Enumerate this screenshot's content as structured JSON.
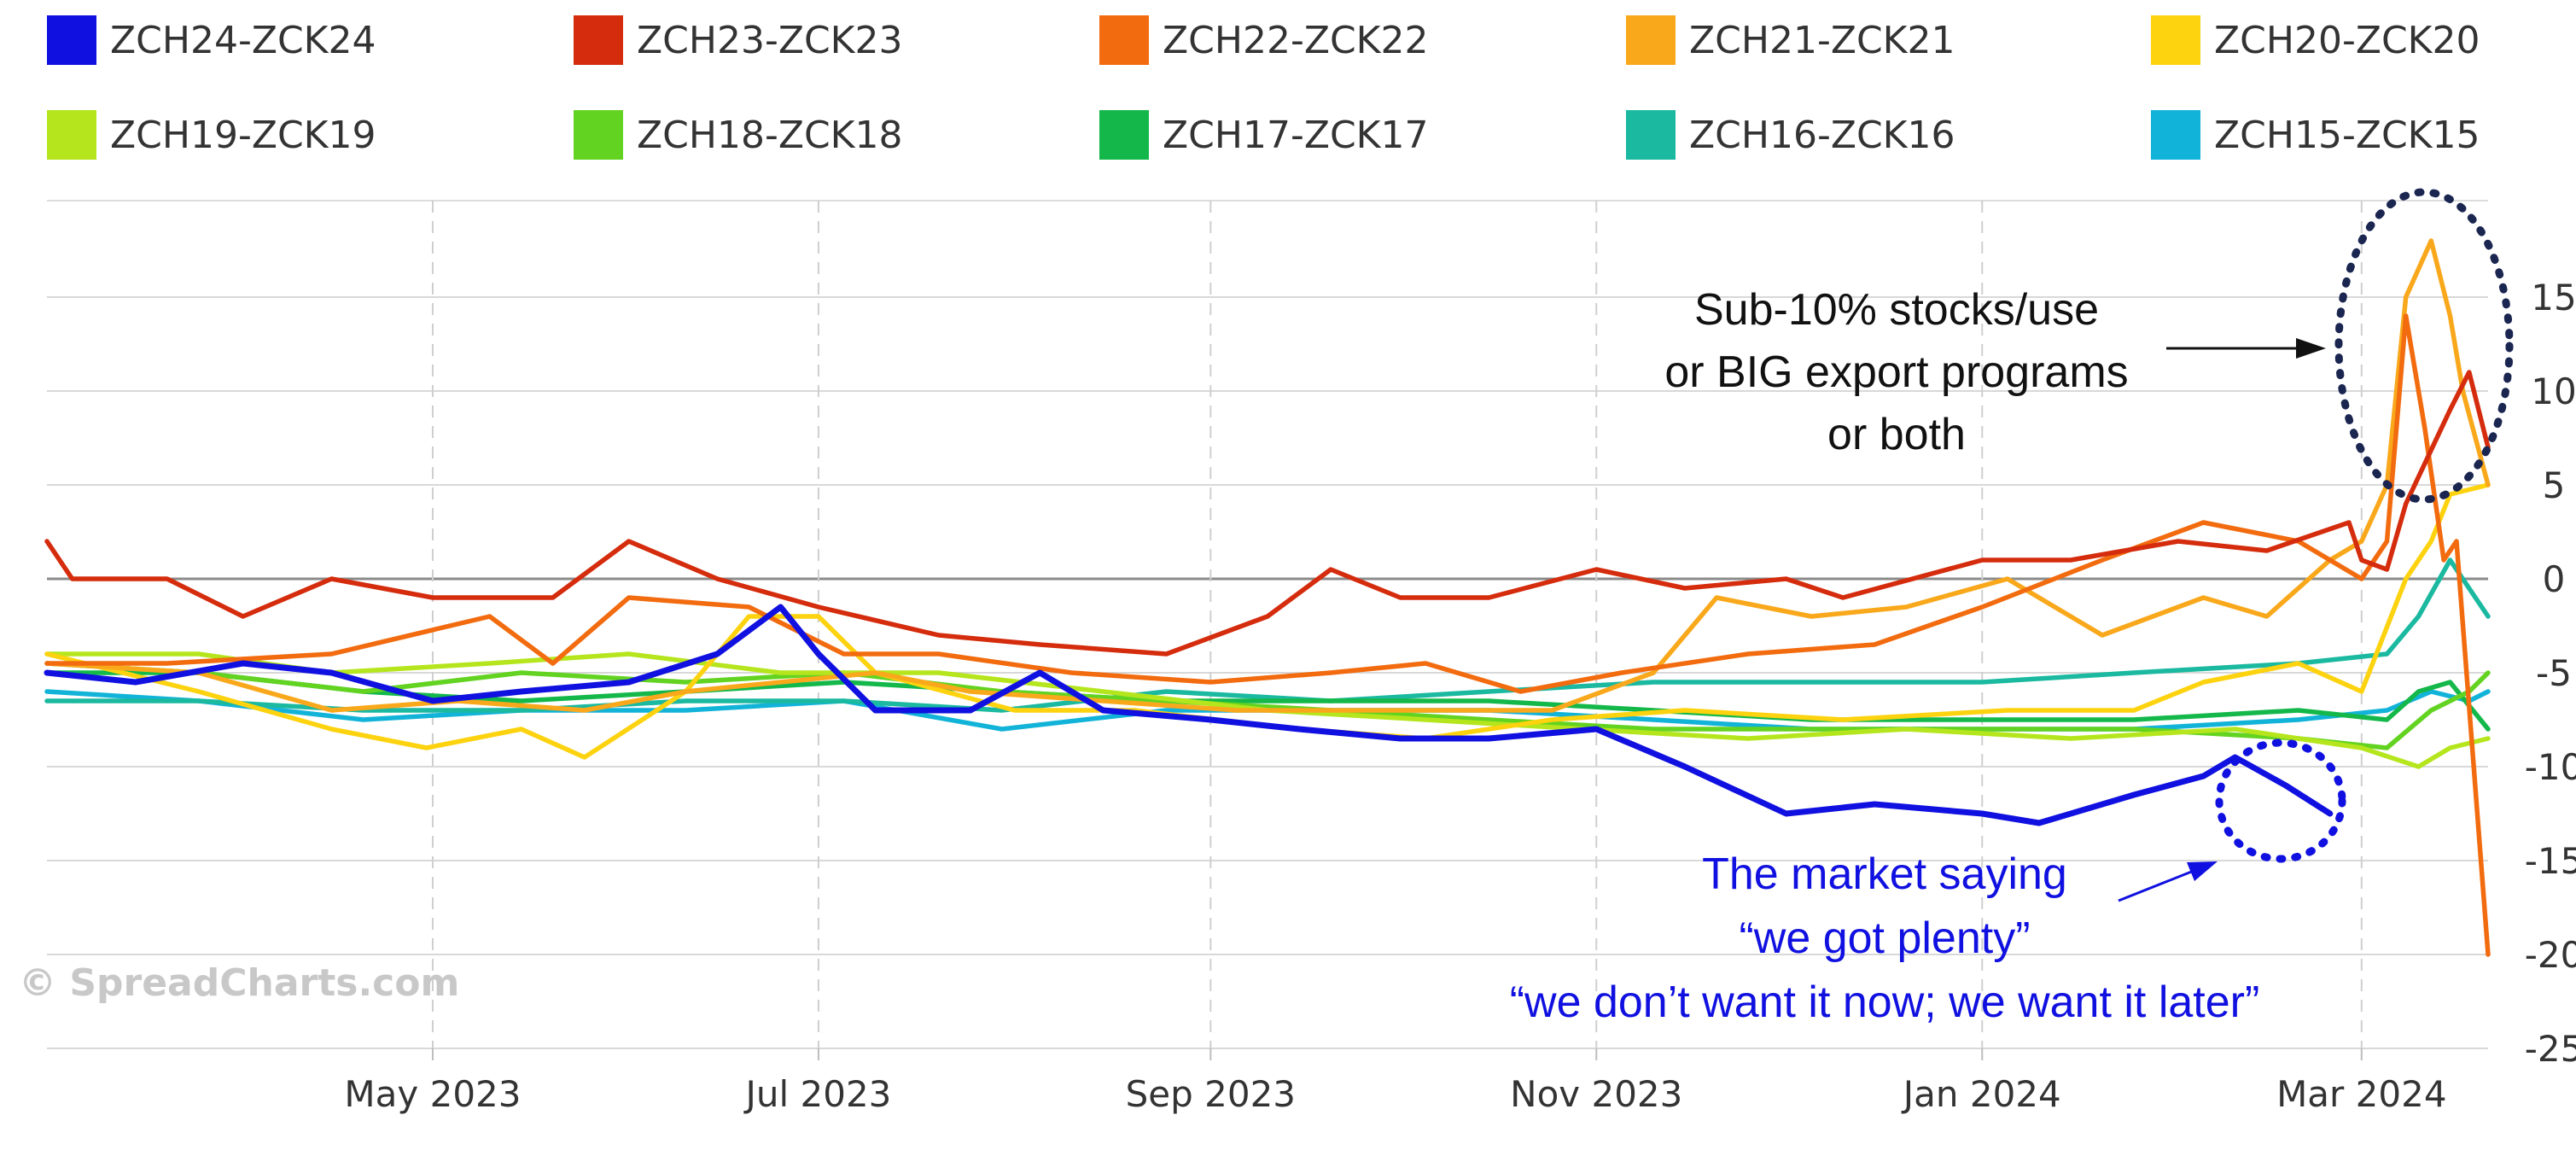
{
  "watermark": "© SpreadCharts.com",
  "chart_data": {
    "type": "line",
    "x_axis": {
      "ticks": [
        "May 2023",
        "Jul 2023",
        "Sep 2023",
        "Nov 2023",
        "Jan 2024",
        "Mar 2024"
      ]
    },
    "y_axis": {
      "range": [
        -25,
        20
      ],
      "ticks": [
        15,
        10,
        5,
        0,
        -5,
        -10,
        -15,
        -20,
        -25
      ],
      "position": "right"
    },
    "grid": {
      "horizontal": true,
      "vertical": "dashed"
    },
    "legend": {
      "position": "top"
    },
    "series": [
      {
        "name": "ZCH24-ZCK24",
        "color": "#1010e0",
        "points": [
          [
            "2023-03-01",
            -5
          ],
          [
            "2023-03-15",
            -5.5
          ],
          [
            "2023-04-01",
            -4.5
          ],
          [
            "2023-04-15",
            -5
          ],
          [
            "2023-05-01",
            -6.5
          ],
          [
            "2023-05-15",
            -6
          ],
          [
            "2023-06-01",
            -5.5
          ],
          [
            "2023-06-15",
            -4
          ],
          [
            "2023-06-25",
            -1.5
          ],
          [
            "2023-07-01",
            -4
          ],
          [
            "2023-07-10",
            -7
          ],
          [
            "2023-07-25",
            -7
          ],
          [
            "2023-08-05",
            -5
          ],
          [
            "2023-08-15",
            -7
          ],
          [
            "2023-09-01",
            -7.5
          ],
          [
            "2023-09-15",
            -8
          ],
          [
            "2023-10-01",
            -8.5
          ],
          [
            "2023-10-15",
            -8.5
          ],
          [
            "2023-11-01",
            -8
          ],
          [
            "2023-11-15",
            -10
          ],
          [
            "2023-12-01",
            -12.5
          ],
          [
            "2023-12-15",
            -12
          ],
          [
            "2024-01-01",
            -12.5
          ],
          [
            "2024-01-10",
            -13
          ],
          [
            "2024-01-25",
            -11.5
          ],
          [
            "2024-02-05",
            -10.5
          ],
          [
            "2024-02-10",
            -9.5
          ],
          [
            "2024-02-18",
            -11
          ],
          [
            "2024-02-25",
            -12.5
          ]
        ]
      },
      {
        "name": "ZCH23-ZCK23",
        "color": "#d42c0c",
        "points": [
          [
            "2023-03-01",
            2
          ],
          [
            "2023-03-05",
            0
          ],
          [
            "2023-03-20",
            0
          ],
          [
            "2023-04-01",
            -2
          ],
          [
            "2023-04-15",
            0
          ],
          [
            "2023-05-01",
            -1
          ],
          [
            "2023-05-20",
            -1
          ],
          [
            "2023-06-01",
            2
          ],
          [
            "2023-06-15",
            0
          ],
          [
            "2023-07-01",
            -1.5
          ],
          [
            "2023-07-20",
            -3
          ],
          [
            "2023-08-05",
            -3.5
          ],
          [
            "2023-08-25",
            -4
          ],
          [
            "2023-09-10",
            -2
          ],
          [
            "2023-09-20",
            0.5
          ],
          [
            "2023-10-01",
            -1
          ],
          [
            "2023-10-15",
            -1
          ],
          [
            "2023-11-01",
            0.5
          ],
          [
            "2023-11-15",
            -0.5
          ],
          [
            "2023-12-01",
            0
          ],
          [
            "2023-12-10",
            -1
          ],
          [
            "2024-01-01",
            1
          ],
          [
            "2024-01-15",
            1
          ],
          [
            "2024-02-01",
            2
          ],
          [
            "2024-02-15",
            1.5
          ],
          [
            "2024-02-28",
            3
          ],
          [
            "2024-03-01",
            1
          ],
          [
            "2024-03-05",
            0.5
          ],
          [
            "2024-03-08",
            4
          ],
          [
            "2024-03-15",
            9
          ],
          [
            "2024-03-18",
            11
          ],
          [
            "2024-03-21",
            7
          ]
        ]
      },
      {
        "name": "ZCH22-ZCK22",
        "color": "#f26b0f",
        "points": [
          [
            "2023-03-01",
            -4.5
          ],
          [
            "2023-03-20",
            -4.5
          ],
          [
            "2023-04-15",
            -4
          ],
          [
            "2023-05-10",
            -2
          ],
          [
            "2023-05-20",
            -4.5
          ],
          [
            "2023-06-01",
            -1
          ],
          [
            "2023-06-20",
            -1.5
          ],
          [
            "2023-07-05",
            -4
          ],
          [
            "2023-07-20",
            -4
          ],
          [
            "2023-08-10",
            -5
          ],
          [
            "2023-09-01",
            -5.5
          ],
          [
            "2023-09-20",
            -5
          ],
          [
            "2023-10-05",
            -4.5
          ],
          [
            "2023-10-20",
            -6
          ],
          [
            "2023-11-05",
            -5
          ],
          [
            "2023-11-25",
            -4
          ],
          [
            "2023-12-15",
            -3.5
          ],
          [
            "2024-01-01",
            -1.5
          ],
          [
            "2024-01-20",
            1
          ],
          [
            "2024-02-05",
            3
          ],
          [
            "2024-02-20",
            2
          ],
          [
            "2024-03-01",
            0
          ],
          [
            "2024-03-05",
            2
          ],
          [
            "2024-03-08",
            14
          ],
          [
            "2024-03-11",
            8
          ],
          [
            "2024-03-14",
            1
          ],
          [
            "2024-03-16",
            2
          ],
          [
            "2024-03-21",
            -20
          ]
        ]
      },
      {
        "name": "ZCH21-ZCK21",
        "color": "#f9a81b",
        "points": [
          [
            "2023-03-01",
            -4.5
          ],
          [
            "2023-03-25",
            -5
          ],
          [
            "2023-04-15",
            -7
          ],
          [
            "2023-05-05",
            -6.5
          ],
          [
            "2023-05-25",
            -7
          ],
          [
            "2023-06-10",
            -6
          ],
          [
            "2023-06-25",
            -5.5
          ],
          [
            "2023-07-10",
            -5
          ],
          [
            "2023-07-25",
            -6
          ],
          [
            "2023-08-15",
            -6.5
          ],
          [
            "2023-09-05",
            -7
          ],
          [
            "2023-09-25",
            -7
          ],
          [
            "2023-10-10",
            -7
          ],
          [
            "2023-10-25",
            -7
          ],
          [
            "2023-11-10",
            -5
          ],
          [
            "2023-11-20",
            -1
          ],
          [
            "2023-12-05",
            -2
          ],
          [
            "2023-12-20",
            -1.5
          ],
          [
            "2024-01-05",
            0
          ],
          [
            "2024-01-20",
            -3
          ],
          [
            "2024-02-05",
            -1
          ],
          [
            "2024-02-15",
            -2
          ],
          [
            "2024-02-25",
            1
          ],
          [
            "2024-03-01",
            2
          ],
          [
            "2024-03-05",
            5
          ],
          [
            "2024-03-08",
            15
          ],
          [
            "2024-03-12",
            18
          ],
          [
            "2024-03-15",
            14
          ],
          [
            "2024-03-17",
            10
          ],
          [
            "2024-03-21",
            5
          ]
        ]
      },
      {
        "name": "ZCH20-ZCK20",
        "color": "#fdd20e",
        "points": [
          [
            "2023-03-01",
            -4
          ],
          [
            "2023-03-25",
            -6
          ],
          [
            "2023-04-15",
            -8
          ],
          [
            "2023-04-30",
            -9
          ],
          [
            "2023-05-15",
            -8
          ],
          [
            "2023-05-25",
            -9.5
          ],
          [
            "2023-06-10",
            -6
          ],
          [
            "2023-06-20",
            -2
          ],
          [
            "2023-07-01",
            -2
          ],
          [
            "2023-07-10",
            -5
          ],
          [
            "2023-08-01",
            -7
          ],
          [
            "2023-08-20",
            -7
          ],
          [
            "2023-09-15",
            -8
          ],
          [
            "2023-10-05",
            -8.5
          ],
          [
            "2023-10-25",
            -7.5
          ],
          [
            "2023-11-15",
            -7
          ],
          [
            "2023-12-10",
            -7.5
          ],
          [
            "2024-01-05",
            -7
          ],
          [
            "2024-01-25",
            -7
          ],
          [
            "2024-02-05",
            -5.5
          ],
          [
            "2024-02-20",
            -4.5
          ],
          [
            "2024-03-01",
            -6
          ],
          [
            "2024-03-08",
            0
          ],
          [
            "2024-03-12",
            2
          ],
          [
            "2024-03-15",
            4.5
          ],
          [
            "2024-03-21",
            5
          ]
        ]
      },
      {
        "name": "ZCH19-ZCK19",
        "color": "#b5e61d",
        "points": [
          [
            "2023-03-01",
            -4
          ],
          [
            "2023-03-25",
            -4
          ],
          [
            "2023-04-15",
            -5
          ],
          [
            "2023-05-10",
            -4.5
          ],
          [
            "2023-06-01",
            -4
          ],
          [
            "2023-06-25",
            -5
          ],
          [
            "2023-07-20",
            -5
          ],
          [
            "2023-08-15",
            -6
          ],
          [
            "2023-09-10",
            -7
          ],
          [
            "2023-10-05",
            -7.5
          ],
          [
            "2023-10-30",
            -8
          ],
          [
            "2023-11-25",
            -8.5
          ],
          [
            "2023-12-20",
            -8
          ],
          [
            "2024-01-15",
            -8.5
          ],
          [
            "2024-02-10",
            -8
          ],
          [
            "2024-03-01",
            -9
          ],
          [
            "2024-03-10",
            -10
          ],
          [
            "2024-03-15",
            -9
          ],
          [
            "2024-03-21",
            -8.5
          ]
        ]
      },
      {
        "name": "ZCH18-ZCK18",
        "color": "#63d321",
        "points": [
          [
            "2023-03-01",
            -4.5
          ],
          [
            "2023-03-25",
            -5
          ],
          [
            "2023-04-20",
            -6
          ],
          [
            "2023-05-15",
            -5
          ],
          [
            "2023-06-10",
            -5.5
          ],
          [
            "2023-07-05",
            -5
          ],
          [
            "2023-07-30",
            -6
          ],
          [
            "2023-08-25",
            -6.5
          ],
          [
            "2023-09-20",
            -7
          ],
          [
            "2023-10-15",
            -7.5
          ],
          [
            "2023-11-10",
            -8
          ],
          [
            "2023-12-05",
            -8
          ],
          [
            "2024-01-01",
            -8
          ],
          [
            "2024-01-25",
            -8
          ],
          [
            "2024-02-20",
            -8.5
          ],
          [
            "2024-03-05",
            -9
          ],
          [
            "2024-03-12",
            -7
          ],
          [
            "2024-03-18",
            -6
          ],
          [
            "2024-03-21",
            -5
          ]
        ]
      },
      {
        "name": "ZCH17-ZCK17",
        "color": "#14b84a",
        "points": [
          [
            "2023-03-01",
            -5
          ],
          [
            "2023-03-25",
            -5
          ],
          [
            "2023-04-20",
            -6
          ],
          [
            "2023-05-15",
            -6.5
          ],
          [
            "2023-06-10",
            -6
          ],
          [
            "2023-07-05",
            -5.5
          ],
          [
            "2023-07-30",
            -6
          ],
          [
            "2023-08-25",
            -6.5
          ],
          [
            "2023-09-20",
            -6.5
          ],
          [
            "2023-10-15",
            -6.5
          ],
          [
            "2023-11-10",
            -7
          ],
          [
            "2023-12-05",
            -7.5
          ],
          [
            "2024-01-01",
            -7.5
          ],
          [
            "2024-01-25",
            -7.5
          ],
          [
            "2024-02-20",
            -7
          ],
          [
            "2024-03-05",
            -7.5
          ],
          [
            "2024-03-10",
            -6
          ],
          [
            "2024-03-15",
            -5.5
          ],
          [
            "2024-03-21",
            -8
          ]
        ]
      },
      {
        "name": "ZCH16-ZCK16",
        "color": "#1ab9a0",
        "points": [
          [
            "2023-03-01",
            -6.5
          ],
          [
            "2023-03-25",
            -6.5
          ],
          [
            "2023-04-20",
            -7
          ],
          [
            "2023-05-15",
            -7
          ],
          [
            "2023-06-10",
            -6.5
          ],
          [
            "2023-07-05",
            -6.5
          ],
          [
            "2023-07-30",
            -7
          ],
          [
            "2023-08-25",
            -6
          ],
          [
            "2023-09-20",
            -6.5
          ],
          [
            "2023-10-15",
            -6
          ],
          [
            "2023-11-10",
            -5.5
          ],
          [
            "2023-12-05",
            -5.5
          ],
          [
            "2024-01-01",
            -5.5
          ],
          [
            "2024-01-25",
            -5
          ],
          [
            "2024-02-20",
            -4.5
          ],
          [
            "2024-03-05",
            -4
          ],
          [
            "2024-03-10",
            -2
          ],
          [
            "2024-03-15",
            1
          ],
          [
            "2024-03-21",
            -2
          ]
        ]
      },
      {
        "name": "ZCH15-ZCK15",
        "color": "#12b3d8",
        "points": [
          [
            "2023-03-01",
            -6
          ],
          [
            "2023-03-25",
            -6.5
          ],
          [
            "2023-04-20",
            -7.5
          ],
          [
            "2023-05-15",
            -7
          ],
          [
            "2023-06-10",
            -7
          ],
          [
            "2023-07-05",
            -6.5
          ],
          [
            "2023-07-30",
            -8
          ],
          [
            "2023-08-25",
            -7
          ],
          [
            "2023-09-20",
            -7
          ],
          [
            "2023-10-15",
            -7
          ],
          [
            "2023-11-10",
            -7.5
          ],
          [
            "2023-12-05",
            -8
          ],
          [
            "2024-01-01",
            -8
          ],
          [
            "2024-01-25",
            -8
          ],
          [
            "2024-02-20",
            -7.5
          ],
          [
            "2024-03-05",
            -7
          ],
          [
            "2024-03-12",
            -6
          ],
          [
            "2024-03-18",
            -6.5
          ],
          [
            "2024-03-21",
            -6
          ]
        ]
      }
    ],
    "annotations": [
      {
        "lines": [
          "Sub-10% stocks/use",
          "or BIG export programs",
          "or both"
        ],
        "color": "#111111"
      },
      {
        "lines": [
          "The market saying",
          "“we got plenty”",
          "“we don’t want it now; we want it later”"
        ],
        "color": "#1010e0"
      }
    ]
  }
}
